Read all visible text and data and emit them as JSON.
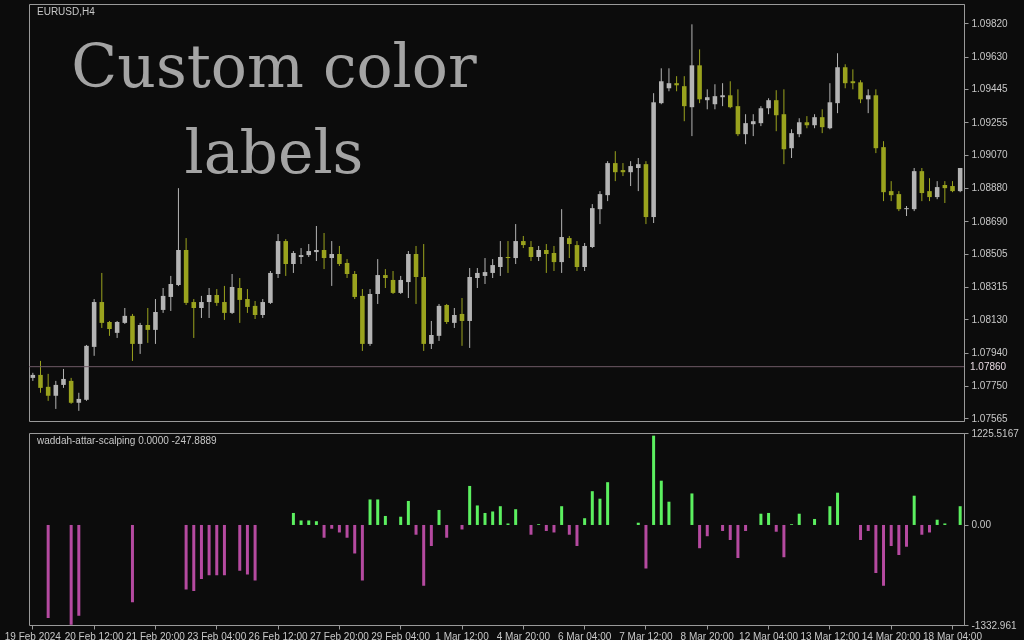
{
  "chart_data": [
    {
      "type": "candlestick",
      "title": "EURUSD,H4",
      "annotations": [
        "Custom color labels"
      ],
      "tick_labels": "y",
      "categories": [
        null,
        null,
        null,
        null,
        null,
        null,
        null,
        null,
        null,
        null,
        null,
        null,
        null,
        null,
        null,
        null,
        null,
        null,
        null,
        null,
        null,
        null,
        null,
        null,
        null,
        null,
        null,
        null,
        null,
        null,
        null,
        null,
        null,
        null,
        null,
        null,
        null,
        null,
        null,
        null,
        null,
        null,
        null,
        null,
        null,
        null,
        null,
        null,
        null,
        null,
        null,
        null,
        null,
        null,
        null,
        null,
        null,
        null,
        null,
        null,
        null,
        null,
        null,
        null,
        null,
        null,
        null,
        null,
        null,
        null,
        null,
        null,
        null,
        null,
        null,
        null,
        null,
        null,
        null,
        null,
        null,
        null,
        null,
        null,
        null,
        null,
        null,
        null,
        null,
        null,
        null,
        null,
        null,
        null,
        null,
        null,
        null,
        null,
        null,
        null,
        null,
        null,
        null,
        null,
        null,
        null,
        null,
        null,
        null,
        null,
        null,
        null,
        null,
        null,
        null,
        null,
        null,
        null,
        null,
        null,
        null,
        null
      ],
      "ohlc": [
        [
          1.07796,
          1.07825,
          1.07779,
          1.07813
        ],
        [
          1.07813,
          1.07893,
          1.07711,
          1.07739
        ],
        [
          1.07745,
          1.07819,
          1.07665,
          1.07694
        ],
        [
          1.07694,
          1.07779,
          1.07619,
          1.07756
        ],
        [
          1.07756,
          1.07847,
          1.07739,
          1.0779
        ],
        [
          1.07779,
          1.07796,
          1.07648,
          1.07654
        ],
        [
          1.07654,
          1.07711,
          1.07608,
          1.07676
        ],
        [
          1.07671,
          1.07984,
          1.07665,
          1.07979
        ],
        [
          1.07973,
          1.08246,
          1.07922,
          1.08229
        ],
        [
          1.08229,
          1.08395,
          1.08081,
          1.0811
        ],
        [
          1.08115,
          1.08121,
          1.08036,
          1.08075
        ],
        [
          1.08053,
          1.08121,
          1.08024,
          1.08115
        ],
        [
          1.0811,
          1.08195,
          1.08104,
          1.0815
        ],
        [
          1.0815,
          1.08161,
          1.07893,
          1.0799
        ],
        [
          1.0799,
          1.0811,
          1.07933,
          1.08098
        ],
        [
          1.08098,
          1.08195,
          1.07996,
          1.0807
        ],
        [
          1.0807,
          1.08246,
          1.0799,
          1.08172
        ],
        [
          1.08184,
          1.08309,
          1.08167,
          1.08264
        ],
        [
          1.08258,
          1.08378,
          1.08178,
          1.08332
        ],
        [
          1.08326,
          1.08879,
          1.0832,
          1.08526
        ],
        [
          1.08526,
          1.08594,
          1.08212,
          1.08224
        ],
        [
          1.08229,
          1.08246,
          1.08024,
          1.08195
        ],
        [
          1.08195,
          1.08264,
          1.08138,
          1.08229
        ],
        [
          1.08229,
          1.08309,
          1.08138,
          1.08269
        ],
        [
          1.08269,
          1.08303,
          1.08207,
          1.08224
        ],
        [
          1.08229,
          1.08321,
          1.08127,
          1.08167
        ],
        [
          1.08167,
          1.08389,
          1.08161,
          1.08315
        ],
        [
          1.08309,
          1.08366,
          1.0811,
          1.08241
        ],
        [
          1.08246,
          1.08303,
          1.08167,
          1.08201
        ],
        [
          1.08207,
          1.08235,
          1.08132,
          1.08155
        ],
        [
          1.08155,
          1.08246,
          1.08138,
          1.08229
        ],
        [
          1.08224,
          1.08406,
          1.08218,
          1.08395
        ],
        [
          1.08389,
          1.08617,
          1.08366,
          1.08577
        ],
        [
          1.08577,
          1.08588,
          1.08378,
          1.08446
        ],
        [
          1.08446,
          1.0852,
          1.08395,
          1.08509
        ],
        [
          1.08486,
          1.08537,
          1.08446,
          1.08497
        ],
        [
          1.08497,
          1.0856,
          1.08486,
          1.0852
        ],
        [
          1.08514,
          1.08663,
          1.08463,
          1.08526
        ],
        [
          1.08526,
          1.08623,
          1.08417,
          1.0848
        ],
        [
          1.0848,
          1.08577,
          1.08321,
          1.08503
        ],
        [
          1.08503,
          1.08549,
          1.08435,
          1.08446
        ],
        [
          1.08452,
          1.08474,
          1.08366,
          1.08389
        ],
        [
          1.08389,
          1.08406,
          1.08246,
          1.08258
        ],
        [
          1.08264,
          1.08303,
          1.0795,
          1.0799
        ],
        [
          1.0799,
          1.08303,
          1.07979,
          1.08275
        ],
        [
          1.08275,
          1.08474,
          1.08218,
          1.08383
        ],
        [
          1.08383,
          1.08417,
          1.08309,
          1.08366
        ],
        [
          1.08355,
          1.08406,
          1.08275,
          1.08281
        ],
        [
          1.08281,
          1.08378,
          1.08275,
          1.08355
        ],
        [
          1.08343,
          1.0852,
          1.08252,
          1.08503
        ],
        [
          1.08503,
          1.08549,
          1.08218,
          1.08372
        ],
        [
          1.08372,
          1.0856,
          1.0795,
          1.0799
        ],
        [
          1.0799,
          1.08121,
          1.07961,
          1.08041
        ],
        [
          1.08036,
          1.08218,
          1.08007,
          1.08207
        ],
        [
          1.08212,
          1.08218,
          1.08104,
          1.08115
        ],
        [
          1.0811,
          1.08195,
          1.08081,
          1.08155
        ],
        [
          1.08161,
          1.08252,
          1.07979,
          1.08121
        ],
        [
          1.08121,
          1.08423,
          1.07967,
          1.08372
        ],
        [
          1.08366,
          1.08423,
          1.08309,
          1.08395
        ],
        [
          1.08378,
          1.0848,
          1.08332,
          1.084
        ],
        [
          1.08395,
          1.08474,
          1.08366,
          1.0844
        ],
        [
          1.08429,
          1.08577,
          1.08378,
          1.08486
        ],
        [
          1.08486,
          1.08577,
          1.08395,
          1.0848
        ],
        [
          1.0848,
          1.08674,
          1.08446,
          1.08577
        ],
        [
          1.08577,
          1.08606,
          1.08537,
          1.08554
        ],
        [
          1.08543,
          1.08577,
          1.08463,
          1.08486
        ],
        [
          1.08486,
          1.08549,
          1.08463,
          1.08526
        ],
        [
          1.08526,
          1.0856,
          1.08395,
          1.08503
        ],
        [
          1.08509,
          1.08549,
          1.08406,
          1.08457
        ],
        [
          1.08457,
          1.08759,
          1.08395,
          1.086
        ],
        [
          1.08594,
          1.08606,
          1.0848,
          1.0856
        ],
        [
          1.08554,
          1.08577,
          1.08406,
          1.08429
        ],
        [
          1.08429,
          1.08566,
          1.08406,
          1.08549
        ],
        [
          1.08543,
          1.08788,
          1.08537,
          1.08765
        ],
        [
          1.08759,
          1.08862,
          1.08674,
          1.08845
        ],
        [
          1.08839,
          1.09033,
          1.08805,
          1.09022
        ],
        [
          1.09022,
          1.0909,
          1.08919,
          1.0897
        ],
        [
          1.08982,
          1.09022,
          1.08948,
          1.0897
        ],
        [
          1.0897,
          1.09033,
          1.08891,
          1.09005
        ],
        [
          1.08994,
          1.09051,
          1.08862,
          1.09016
        ],
        [
          1.09016,
          1.09033,
          1.08674,
          1.08714
        ],
        [
          1.08714,
          1.09421,
          1.0868,
          1.09369
        ],
        [
          1.09364,
          1.09563,
          1.09358,
          1.09489
        ],
        [
          1.09449,
          1.09563,
          1.09432,
          1.09478
        ],
        [
          1.09478,
          1.09518,
          1.09432,
          1.09466
        ],
        [
          1.09461,
          1.09518,
          1.09261,
          1.09347
        ],
        [
          1.09341,
          1.09814,
          1.09176,
          1.0958
        ],
        [
          1.0958,
          1.09671,
          1.09364,
          1.09386
        ],
        [
          1.09381,
          1.09443,
          1.09329,
          1.09398
        ],
        [
          1.09358,
          1.09472,
          1.09329,
          1.09404
        ],
        [
          1.09398,
          1.09478,
          1.09347,
          1.09409
        ],
        [
          1.09409,
          1.09489,
          1.09335,
          1.09341
        ],
        [
          1.09347,
          1.09443,
          1.09176,
          1.09187
        ],
        [
          1.09187,
          1.09301,
          1.0913,
          1.0925
        ],
        [
          1.09244,
          1.09301,
          1.09176,
          1.09261
        ],
        [
          1.0925,
          1.09347,
          1.09233,
          1.09335
        ],
        [
          1.09335,
          1.09392,
          1.09301,
          1.09381
        ],
        [
          1.09381,
          1.09438,
          1.09204,
          1.09295
        ],
        [
          1.09301,
          1.09443,
          1.09016,
          1.09101
        ],
        [
          1.09107,
          1.09215,
          1.09051,
          1.09193
        ],
        [
          1.09187,
          1.09278,
          1.0917,
          1.09255
        ],
        [
          1.09255,
          1.0929,
          1.09221,
          1.09238
        ],
        [
          1.09238,
          1.09301,
          1.09221,
          1.09284
        ],
        [
          1.09284,
          1.09329,
          1.09193,
          1.09227
        ],
        [
          1.09221,
          1.09478,
          1.09215,
          1.09369
        ],
        [
          1.09364,
          1.09649,
          1.09307,
          1.09569
        ],
        [
          1.09569,
          1.09586,
          1.09449,
          1.09478
        ],
        [
          1.09489,
          1.09557,
          1.09443,
          1.09478
        ],
        [
          1.09483,
          1.09495,
          1.09364,
          1.09386
        ],
        [
          1.09386,
          1.09443,
          1.09307,
          1.09409
        ],
        [
          1.09409,
          1.09443,
          1.09079,
          1.09107
        ],
        [
          1.09113,
          1.09147,
          1.08805,
          1.08856
        ],
        [
          1.08862,
          1.08919,
          1.08805,
          1.08839
        ],
        [
          1.08845,
          1.08862,
          1.08748,
          1.08759
        ],
        [
          1.08759,
          1.08777,
          1.0872,
          1.08765
        ],
        [
          1.08759,
          1.08994,
          1.08748,
          1.08976
        ],
        [
          1.08976,
          1.08994,
          1.08805,
          1.08851
        ],
        [
          1.08862,
          1.08936,
          1.08805,
          1.08828
        ],
        [
          1.08828,
          1.08919,
          1.08816,
          1.08885
        ],
        [
          1.08897,
          1.08919,
          1.08794,
          1.08879
        ],
        [
          1.08891,
          1.08919,
          1.08856,
          1.08862
        ],
        [
          1.08862,
          1.08994,
          1.08856,
          1.08994
        ]
      ],
      "colors": [
        "#b4b4b4",
        "#9aa31e",
        "#9aa31e",
        "#b4b4b4",
        "#b4b4b4",
        "#9aa31e",
        "#b4b4b4",
        "#b4b4b4",
        "#b4b4b4",
        "#9aa31e",
        "#9aa31e",
        "#b4b4b4",
        "#b4b4b4",
        "#9aa31e",
        "#b4b4b4",
        "#9aa31e",
        "#b4b4b4",
        "#b4b4b4",
        "#b4b4b4",
        "#b4b4b4",
        "#9aa31e",
        "#9aa31e",
        "#b4b4b4",
        "#b4b4b4",
        "#9aa31e",
        "#9aa31e",
        "#b4b4b4",
        "#9aa31e",
        "#9aa31e",
        "#9aa31e",
        "#b4b4b4",
        "#b4b4b4",
        "#b4b4b4",
        "#9aa31e",
        "#b4b4b4",
        "#b4b4b4",
        "#b4b4b4",
        "#b4b4b4",
        "#9aa31e",
        "#b4b4b4",
        "#9aa31e",
        "#9aa31e",
        "#9aa31e",
        "#9aa31e",
        "#b4b4b4",
        "#b4b4b4",
        "#9aa31e",
        "#9aa31e",
        "#b4b4b4",
        "#b4b4b4",
        "#9aa31e",
        "#9aa31e",
        "#b4b4b4",
        "#b4b4b4",
        "#9aa31e",
        "#b4b4b4",
        "#9aa31e",
        "#b4b4b4",
        "#b4b4b4",
        "#b4b4b4",
        "#b4b4b4",
        "#b4b4b4",
        "#9aa31e",
        "#b4b4b4",
        "#9aa31e",
        "#9aa31e",
        "#b4b4b4",
        "#9aa31e",
        "#9aa31e",
        "#b4b4b4",
        "#9aa31e",
        "#9aa31e",
        "#b4b4b4",
        "#b4b4b4",
        "#b4b4b4",
        "#b4b4b4",
        "#9aa31e",
        "#9aa31e",
        "#b4b4b4",
        "#b4b4b4",
        "#9aa31e",
        "#b4b4b4",
        "#b4b4b4",
        "#b4b4b4",
        "#9aa31e",
        "#9aa31e",
        "#b4b4b4",
        "#9aa31e",
        "#b4b4b4",
        "#b4b4b4",
        "#b4b4b4",
        "#9aa31e",
        "#9aa31e",
        "#b4b4b4",
        "#b4b4b4",
        "#b4b4b4",
        "#b4b4b4",
        "#9aa31e",
        "#9aa31e",
        "#b4b4b4",
        "#b4b4b4",
        "#9aa31e",
        "#b4b4b4",
        "#9aa31e",
        "#b4b4b4",
        "#b4b4b4",
        "#9aa31e",
        "#9aa31e",
        "#9aa31e",
        "#b4b4b4",
        "#9aa31e",
        "#9aa31e",
        "#9aa31e",
        "#9aa31e",
        "#b4b4b4",
        "#b4b4b4",
        "#9aa31e",
        "#9aa31e",
        "#b4b4b4",
        "#9aa31e",
        "#9aa31e",
        "#b4b4b4"
      ],
      "ylim": [
        1.0755,
        1.0993
      ],
      "yticks": [
        {
          "value": 1.0982,
          "label": "1.09820"
        },
        {
          "value": 1.0963,
          "label": "1.09630"
        },
        1.09445,
        1.09255,
        {
          "value": 1.0907,
          "label": "1.09070"
        },
        {
          "value": 1.0888,
          "label": "1.08880"
        },
        {
          "value": 1.0869,
          "label": "1.08690"
        },
        1.08505,
        1.08315,
        {
          "value": 1.0813,
          "label": "1.08130"
        },
        {
          "value": 1.0794,
          "label": "1.07940"
        },
        {
          "value": 1.0775,
          "label": "1.07750"
        },
        1.07565
      ],
      "ref_lines": [
        {
          "axis": "y",
          "value": 1.0786,
          "label": "1.07860",
          "color": "#6f5a66"
        }
      ]
    },
    {
      "type": "bar",
      "title": "waddah-attar-scalping 0.0000 -247.8889",
      "categories": [
        "19 Feb 2024",
        null,
        null,
        null,
        null,
        null,
        null,
        null,
        "20 Feb 12:00",
        null,
        null,
        null,
        null,
        null,
        null,
        null,
        "21 Feb 20:00",
        null,
        null,
        null,
        null,
        null,
        null,
        null,
        "23 Feb 04:00",
        null,
        null,
        null,
        null,
        null,
        null,
        null,
        "26 Feb 12:00",
        null,
        null,
        null,
        null,
        null,
        null,
        null,
        "27 Feb 20:00",
        null,
        null,
        null,
        null,
        null,
        null,
        null,
        "29 Feb 04:00",
        null,
        null,
        null,
        null,
        null,
        null,
        null,
        "1 Mar 12:00",
        null,
        null,
        null,
        null,
        null,
        null,
        null,
        "4 Mar 20:00",
        null,
        null,
        null,
        null,
        null,
        null,
        null,
        "6 Mar 04:00",
        null,
        null,
        null,
        null,
        null,
        null,
        null,
        "7 Mar 12:00",
        null,
        null,
        null,
        null,
        null,
        null,
        null,
        "8 Mar 20:00",
        null,
        null,
        null,
        null,
        null,
        null,
        null,
        "12 Mar 04:00",
        null,
        null,
        null,
        null,
        null,
        null,
        null,
        "13 Mar 12:00",
        null,
        null,
        null,
        null,
        null,
        null,
        null,
        "14 Mar 20:00",
        null,
        null,
        null,
        null,
        null,
        null,
        null,
        "18 Mar 04:00",
        null
      ],
      "values": [
        null,
        null,
        -1240,
        null,
        null,
        -1330,
        -1210,
        null,
        null,
        null,
        null,
        null,
        null,
        -1030,
        null,
        null,
        null,
        null,
        null,
        null,
        -860,
        -880,
        -720,
        -670,
        -670,
        -670,
        null,
        -610,
        -660,
        -740,
        null,
        null,
        null,
        null,
        160,
        60,
        60,
        50,
        -170,
        -50,
        -100,
        -170,
        -380,
        -740,
        340,
        340,
        120,
        null,
        110,
        320,
        -130,
        -810,
        -280,
        200,
        -170,
        null,
        -60,
        520,
        260,
        160,
        180,
        250,
        20,
        210,
        null,
        -130,
        10,
        -80,
        -100,
        250,
        -130,
        -280,
        90,
        450,
        350,
        570,
        null,
        null,
        null,
        30,
        -580,
        1190,
        590,
        310,
        null,
        null,
        420,
        -310,
        -150,
        null,
        -80,
        -200,
        -440,
        -80,
        null,
        150,
        160,
        -90,
        -430,
        10,
        150,
        null,
        80,
        null,
        250,
        430,
        null,
        null,
        -200,
        -80,
        -640,
        -810,
        -280,
        -400,
        -290,
        390,
        -130,
        -100,
        70,
        20,
        null,
        250
      ],
      "colors": [
        null,
        null,
        "#b54aa0",
        null,
        null,
        "#b54aa0",
        "#b54aa0",
        null,
        null,
        null,
        null,
        null,
        null,
        "#b54aa0",
        null,
        null,
        null,
        null,
        null,
        null,
        "#b54aa0",
        "#b54aa0",
        "#b54aa0",
        "#b54aa0",
        "#b54aa0",
        "#b54aa0",
        null,
        "#b54aa0",
        "#b54aa0",
        "#b54aa0",
        null,
        null,
        null,
        null,
        "#5cf060",
        "#5cf060",
        "#5cf060",
        "#5cf060",
        "#b54aa0",
        "#b54aa0",
        "#b54aa0",
        "#b54aa0",
        "#b54aa0",
        "#b54aa0",
        "#5cf060",
        "#5cf060",
        "#5cf060",
        null,
        "#5cf060",
        "#5cf060",
        "#b54aa0",
        "#b54aa0",
        "#b54aa0",
        "#5cf060",
        "#b54aa0",
        null,
        "#b54aa0",
        "#5cf060",
        "#5cf060",
        "#5cf060",
        "#5cf060",
        "#5cf060",
        "#5cf060",
        "#5cf060",
        null,
        "#b54aa0",
        "#5cf060",
        "#b54aa0",
        "#b54aa0",
        "#5cf060",
        "#b54aa0",
        "#b54aa0",
        "#5cf060",
        "#5cf060",
        "#5cf060",
        "#5cf060",
        null,
        null,
        null,
        "#5cf060",
        "#b54aa0",
        "#5cf060",
        "#5cf060",
        "#5cf060",
        null,
        null,
        "#5cf060",
        "#b54aa0",
        "#b54aa0",
        null,
        "#b54aa0",
        "#b54aa0",
        "#b54aa0",
        "#b54aa0",
        null,
        "#5cf060",
        "#5cf060",
        "#b54aa0",
        "#b54aa0",
        "#5cf060",
        "#5cf060",
        null,
        "#5cf060",
        null,
        "#5cf060",
        "#5cf060",
        null,
        null,
        "#b54aa0",
        "#b54aa0",
        "#b54aa0",
        "#b54aa0",
        "#b54aa0",
        "#b54aa0",
        "#b54aa0",
        "#5cf060",
        "#b54aa0",
        "#b54aa0",
        "#5cf060",
        "#5cf060",
        null,
        "#5cf060"
      ],
      "ylim": [
        -1332.961,
        1225.5167
      ],
      "yticks": [
        1225.5167,
        {
          "value": 0,
          "label": "0.00"
        },
        -1332.961
      ]
    }
  ]
}
